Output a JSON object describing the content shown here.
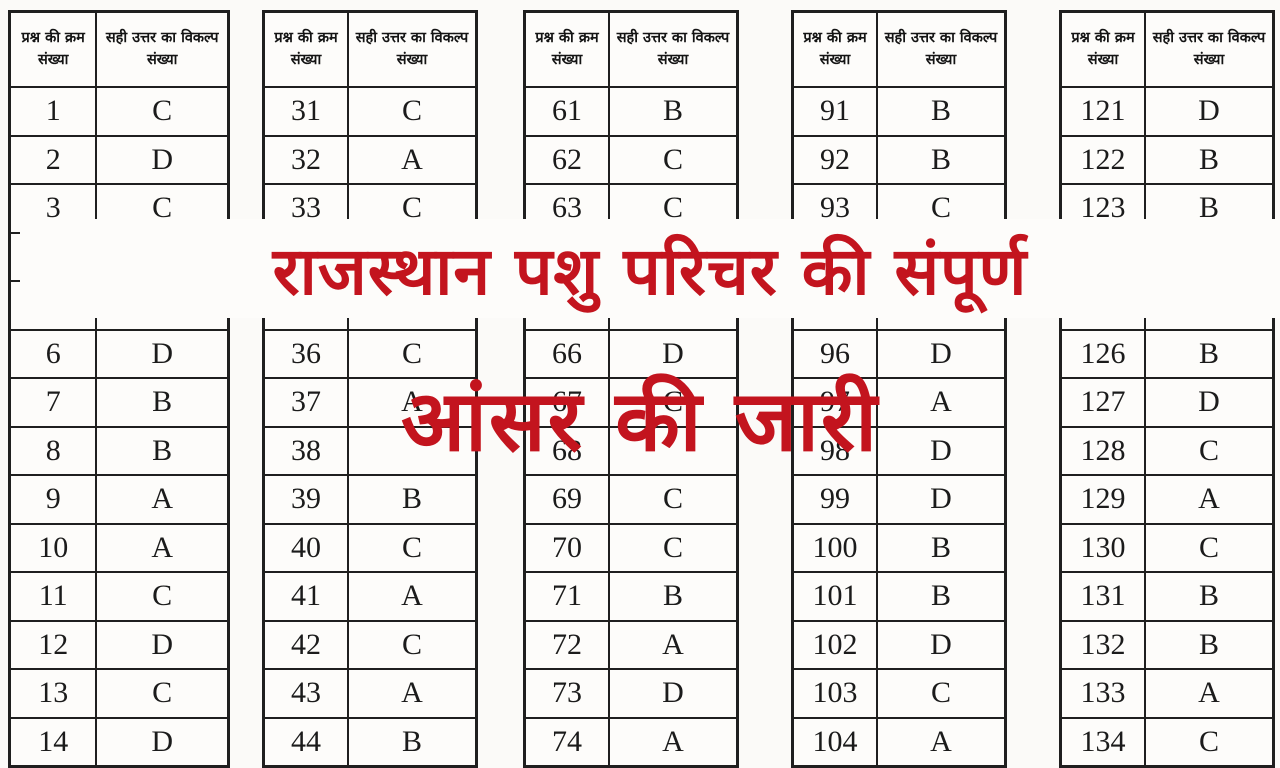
{
  "page": {
    "background": "#fbfaf8"
  },
  "colors": {
    "red": "#c3141e",
    "border": "#1f1f1f",
    "text": "#1b1b1b"
  },
  "headline": {
    "line1": "राजस्थान पशु परिचर की संपूर्ण",
    "line2": "आंसर की जारी"
  },
  "table_header": {
    "q": "प्रश्न की क्रम संख्या",
    "a": "सही उत्तर का विकल्प संख्या"
  },
  "tables": [
    {
      "rows": [
        {
          "q": "1",
          "a": "C"
        },
        {
          "q": "2",
          "a": "D"
        },
        {
          "q": "3",
          "a": "C"
        },
        {
          "q": "",
          "a": ""
        },
        {
          "q": "",
          "a": ""
        },
        {
          "q": "6",
          "a": "D"
        },
        {
          "q": "7",
          "a": "B"
        },
        {
          "q": "8",
          "a": "B"
        },
        {
          "q": "9",
          "a": "A"
        },
        {
          "q": "10",
          "a": "A"
        },
        {
          "q": "11",
          "a": "C"
        },
        {
          "q": "12",
          "a": "D"
        },
        {
          "q": "13",
          "a": "C"
        },
        {
          "q": "14",
          "a": "D"
        }
      ]
    },
    {
      "rows": [
        {
          "q": "31",
          "a": "C"
        },
        {
          "q": "32",
          "a": "A"
        },
        {
          "q": "33",
          "a": "C"
        },
        {
          "q": "",
          "a": ""
        },
        {
          "q": "",
          "a": ""
        },
        {
          "q": "36",
          "a": "C"
        },
        {
          "q": "37",
          "a": "A"
        },
        {
          "q": "38",
          "a": ""
        },
        {
          "q": "39",
          "a": "B"
        },
        {
          "q": "40",
          "a": "C"
        },
        {
          "q": "41",
          "a": "A"
        },
        {
          "q": "42",
          "a": "C"
        },
        {
          "q": "43",
          "a": "A"
        },
        {
          "q": "44",
          "a": "B"
        }
      ]
    },
    {
      "rows": [
        {
          "q": "61",
          "a": "B"
        },
        {
          "q": "62",
          "a": "C"
        },
        {
          "q": "63",
          "a": "C"
        },
        {
          "q": "",
          "a": ""
        },
        {
          "q": "",
          "a": ""
        },
        {
          "q": "66",
          "a": "D"
        },
        {
          "q": "67",
          "a": "C"
        },
        {
          "q": "68",
          "a": ""
        },
        {
          "q": "69",
          "a": "C"
        },
        {
          "q": "70",
          "a": "C"
        },
        {
          "q": "71",
          "a": "B"
        },
        {
          "q": "72",
          "a": "A"
        },
        {
          "q": "73",
          "a": "D"
        },
        {
          "q": "74",
          "a": "A"
        }
      ]
    },
    {
      "rows": [
        {
          "q": "91",
          "a": "B"
        },
        {
          "q": "92",
          "a": "B"
        },
        {
          "q": "93",
          "a": "C"
        },
        {
          "q": "",
          "a": ""
        },
        {
          "q": "",
          "a": ""
        },
        {
          "q": "96",
          "a": "D"
        },
        {
          "q": "97",
          "a": "A"
        },
        {
          "q": "98",
          "a": "D"
        },
        {
          "q": "99",
          "a": "D"
        },
        {
          "q": "100",
          "a": "B"
        },
        {
          "q": "101",
          "a": "B"
        },
        {
          "q": "102",
          "a": "D"
        },
        {
          "q": "103",
          "a": "C"
        },
        {
          "q": "104",
          "a": "A"
        }
      ]
    },
    {
      "rows": [
        {
          "q": "121",
          "a": "D"
        },
        {
          "q": "122",
          "a": "B"
        },
        {
          "q": "123",
          "a": "B"
        },
        {
          "q": "",
          "a": ""
        },
        {
          "q": "",
          "a": ""
        },
        {
          "q": "126",
          "a": "B"
        },
        {
          "q": "127",
          "a": "D"
        },
        {
          "q": "128",
          "a": "C"
        },
        {
          "q": "129",
          "a": "A"
        },
        {
          "q": "130",
          "a": "C"
        },
        {
          "q": "131",
          "a": "B"
        },
        {
          "q": "132",
          "a": "B"
        },
        {
          "q": "133",
          "a": "A"
        },
        {
          "q": "134",
          "a": "C"
        }
      ]
    }
  ]
}
